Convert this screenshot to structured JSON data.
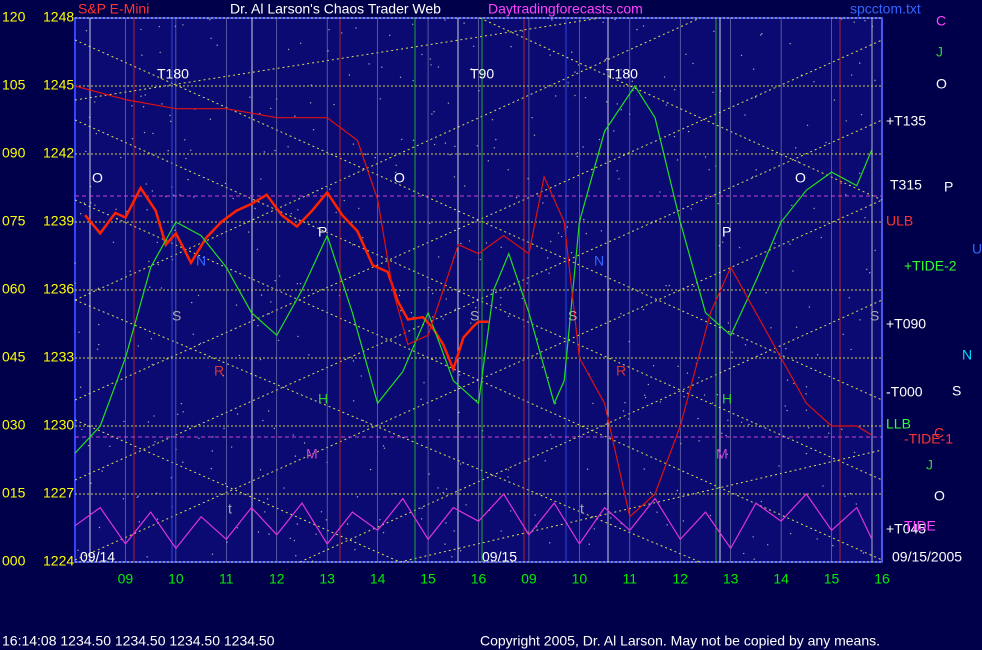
{
  "chart_data": {
    "type": "line",
    "title": "Dr. Al Larson's Chaos Trader Web",
    "subtitle": "Daytradingforecasts.com",
    "footer": "16:14:08  1234.50 1234.50 1234.50 1234.50",
    "copyright": "Copyright 2005, Dr. Al Larson. May not be copied by any means.",
    "grid": true,
    "xlim": [
      0,
      16
    ],
    "xticks": [
      {
        "value": 1,
        "label": "09"
      },
      {
        "value": 2,
        "label": "10"
      },
      {
        "value": 3,
        "label": "11"
      },
      {
        "value": 4,
        "label": "12"
      },
      {
        "value": 5,
        "label": "13"
      },
      {
        "value": 6,
        "label": "14"
      },
      {
        "value": 7,
        "label": "15"
      },
      {
        "value": 8,
        "label": "16"
      },
      {
        "value": 9,
        "label": "09"
      },
      {
        "value": 10,
        "label": "10"
      },
      {
        "value": 11,
        "label": "11"
      },
      {
        "value": 12,
        "label": "12"
      },
      {
        "value": 13,
        "label": "13"
      },
      {
        "value": 14,
        "label": "14"
      },
      {
        "value": 15,
        "label": "15"
      },
      {
        "value": 16,
        "label": "16"
      }
    ],
    "ylim": [
      1224,
      1248
    ],
    "yticks": [
      1224,
      1227,
      1230,
      1233,
      1236,
      1239,
      1242,
      1245,
      1248
    ],
    "y2lim": [
      0,
      120
    ],
    "y2ticks": [
      {
        "value": 0,
        "label": "000"
      },
      {
        "value": 15,
        "label": "015"
      },
      {
        "value": 30,
        "label": "030"
      },
      {
        "value": 45,
        "label": "045"
      },
      {
        "value": 60,
        "label": "060"
      },
      {
        "value": 75,
        "label": "075"
      },
      {
        "value": 90,
        "label": "090"
      },
      {
        "value": 105,
        "label": "105"
      },
      {
        "value": 120,
        "label": "120"
      }
    ],
    "series": [
      {
        "name": "S&P E-Mini",
        "color": "#ff2200",
        "x": [
          0.2,
          0.5,
          0.8,
          1.0,
          1.3,
          1.6,
          1.8,
          2.0,
          2.3,
          2.6,
          2.9,
          3.2,
          3.5,
          3.8,
          4.1,
          4.4,
          4.7,
          5.0,
          5.3,
          5.6,
          5.9,
          6.2,
          6.4,
          6.6,
          6.9,
          7.1,
          7.3,
          7.5,
          7.7,
          7.9,
          8.0,
          8.2
        ],
        "values": [
          1239.3,
          1238.5,
          1239.4,
          1239.2,
          1240.5,
          1239.5,
          1238,
          1238.5,
          1237.2,
          1238.3,
          1239,
          1239.5,
          1239.8,
          1240.2,
          1239.3,
          1238.8,
          1239.5,
          1240.3,
          1239.3,
          1238.6,
          1237.1,
          1236.8,
          1235.5,
          1234.7,
          1234.8,
          1234.3,
          1233.6,
          1232.5,
          1233.9,
          1234.4,
          1234.6,
          1234.6
        ]
      },
      {
        "color": "#22dd22",
        "axis": "y2",
        "x": [
          0,
          0.5,
          1,
          1.5,
          2,
          2.5,
          3,
          3.5,
          4,
          4.5,
          5,
          5.5,
          6,
          6.5,
          7,
          7.5,
          8,
          8.3,
          8.6,
          9,
          9.5,
          9.7,
          10,
          10.5,
          11.1,
          11.5,
          12,
          12.5,
          13,
          13.5,
          14,
          14.5,
          15,
          15.5,
          15.8
        ],
        "values": [
          24,
          30,
          45,
          65,
          75,
          72,
          65,
          55,
          50,
          60,
          72,
          55,
          35,
          42,
          55,
          40,
          35,
          60,
          68,
          55,
          35,
          40,
          75,
          95,
          105,
          98,
          75,
          55,
          50,
          62,
          75,
          82,
          86,
          83,
          91
        ]
      },
      {
        "color": "#dd1111",
        "axis": "y2",
        "x": [
          0,
          1,
          2,
          3,
          4,
          5,
          5.6,
          6,
          6.3,
          6.6,
          7,
          7.3,
          7.6,
          8,
          8.5,
          9,
          9.3,
          9.7,
          10,
          10.5,
          11,
          11.5,
          12,
          12.6,
          13,
          13.5,
          14,
          14.5,
          15,
          15.5,
          15.8
        ],
        "values": [
          105,
          102,
          100,
          100,
          98,
          98,
          93,
          80,
          60,
          48,
          50,
          60,
          70,
          68,
          72,
          68,
          85,
          75,
          45,
          35,
          10,
          15,
          30,
          55,
          65,
          55,
          45,
          35,
          30,
          30,
          28
        ]
      },
      {
        "color": "#dd33dd",
        "axis": "y2",
        "x": [
          0,
          0.5,
          1,
          1.5,
          2,
          2.5,
          3,
          3.5,
          4,
          4.5,
          5,
          5.5,
          6,
          6.5,
          7,
          7.5,
          8,
          8.5,
          9,
          9.5,
          10,
          10.5,
          11,
          11.5,
          12,
          12.5,
          13,
          13.5,
          14,
          14.5,
          15,
          15.5,
          15.8
        ],
        "values": [
          8,
          12,
          4,
          11,
          3,
          10,
          5,
          12,
          6,
          13,
          4,
          11,
          7,
          14,
          5,
          12,
          9,
          15,
          6,
          13,
          4,
          12,
          7,
          14,
          5,
          11,
          3,
          13,
          9,
          15,
          7,
          12,
          5
        ]
      }
    ],
    "annotations": [
      "T180",
      "T90",
      "T180",
      "+T135",
      "T315",
      "ULB",
      "+TIDE-2",
      "+T090",
      "-T000",
      "LLB",
      "-TIDE-1",
      "+T045",
      "TIDE",
      "C",
      "J",
      "O",
      "P",
      "U",
      "N",
      "S",
      "C",
      "J",
      "O",
      "09/14",
      "09/15",
      "09/15/2005",
      "spcctom.txt",
      "O",
      "P",
      "N",
      "S",
      "R",
      "H",
      "M",
      "t",
      "O",
      "P",
      "N",
      "S",
      "S",
      "R",
      "H",
      "M",
      "t",
      "O",
      "S"
    ]
  }
}
